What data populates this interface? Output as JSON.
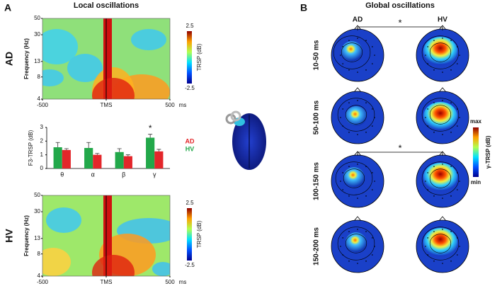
{
  "panels": {
    "A": {
      "letter": "A",
      "title": "Local oscillations",
      "heatmaps": [
        {
          "group": "AD",
          "ylabel": "Frequency (Hz)",
          "ylim": [
            4,
            50
          ],
          "log_scale": true,
          "yticks": [
            4,
            8,
            13,
            30,
            50
          ],
          "xlim": [
            -500,
            500
          ],
          "xticks": [
            -500,
            {
              "value": 0,
              "label": "TMS"
            },
            500
          ],
          "xunit": "ms",
          "colorbar_label": "TRSP (dB)",
          "colorbar_ticks": [
            2.5,
            -2.5
          ]
        },
        {
          "group": "HV",
          "ylabel": "Frequency (Hz)",
          "ylim": [
            4,
            50
          ],
          "log_scale": true,
          "yticks": [
            4,
            8,
            13,
            30,
            50
          ],
          "xlim": [
            -500,
            500
          ],
          "xticks": [
            -500,
            {
              "value": 0,
              "label": "TMS"
            },
            500
          ],
          "xunit": "ms",
          "colorbar_label": "TRSP (dB)",
          "colorbar_ticks": [
            2.5,
            -2.5
          ]
        }
      ]
    },
    "B": {
      "letter": "B",
      "title": "Global oscillations",
      "columns": [
        "AD",
        "HV"
      ],
      "rows": [
        "10-50 ms",
        "50-100 ms",
        "100-150 ms",
        "150-200 ms"
      ],
      "significance": [
        "*",
        "*"
      ],
      "colorbar_label": "γ-TRSP (dB)",
      "colorbar_max": "max",
      "colorbar_min": "min"
    }
  },
  "chart_data": {
    "type": "bar",
    "ylabel": "F3-TRSP (dB)",
    "categories": [
      "θ",
      "α",
      "β",
      "γ"
    ],
    "series": [
      {
        "name": "HV",
        "color": "#22a84a",
        "values": [
          1.55,
          1.5,
          1.2,
          2.25
        ],
        "errors": [
          0.35,
          0.4,
          0.25,
          0.25
        ]
      },
      {
        "name": "AD",
        "color": "#e3262a",
        "values": [
          1.35,
          1.0,
          0.9,
          1.25
        ],
        "errors": [
          0.1,
          0.1,
          0.1,
          0.15
        ]
      }
    ],
    "legend_order": [
      1,
      0
    ],
    "ylim": [
      0,
      3
    ],
    "yticks": [
      0,
      1,
      2,
      3
    ],
    "annotation": "*"
  }
}
